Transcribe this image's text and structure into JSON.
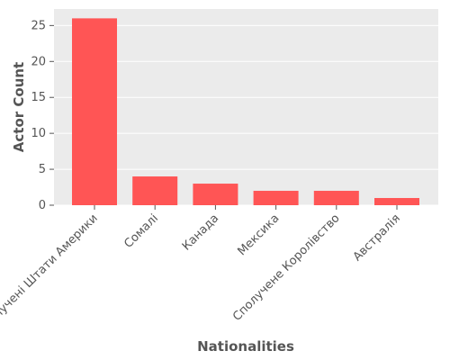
{
  "chart_data": {
    "type": "bar",
    "title": "",
    "xlabel": "Nationalities",
    "ylabel": "Actor Count",
    "categories": [
      "Сполучені Штати Америки",
      "Сомалі",
      "Канада",
      "Мексика",
      "Сполучене Королівство",
      "Австралія"
    ],
    "values": [
      26,
      4,
      3,
      2,
      2,
      1
    ],
    "ylim": [
      0,
      27.3
    ],
    "yticks": [
      0,
      5,
      10,
      15,
      20,
      25
    ],
    "grid": true,
    "bar_color": "#ff5555",
    "background_color": "#ebebeb",
    "grid_color": "#ffffff"
  }
}
